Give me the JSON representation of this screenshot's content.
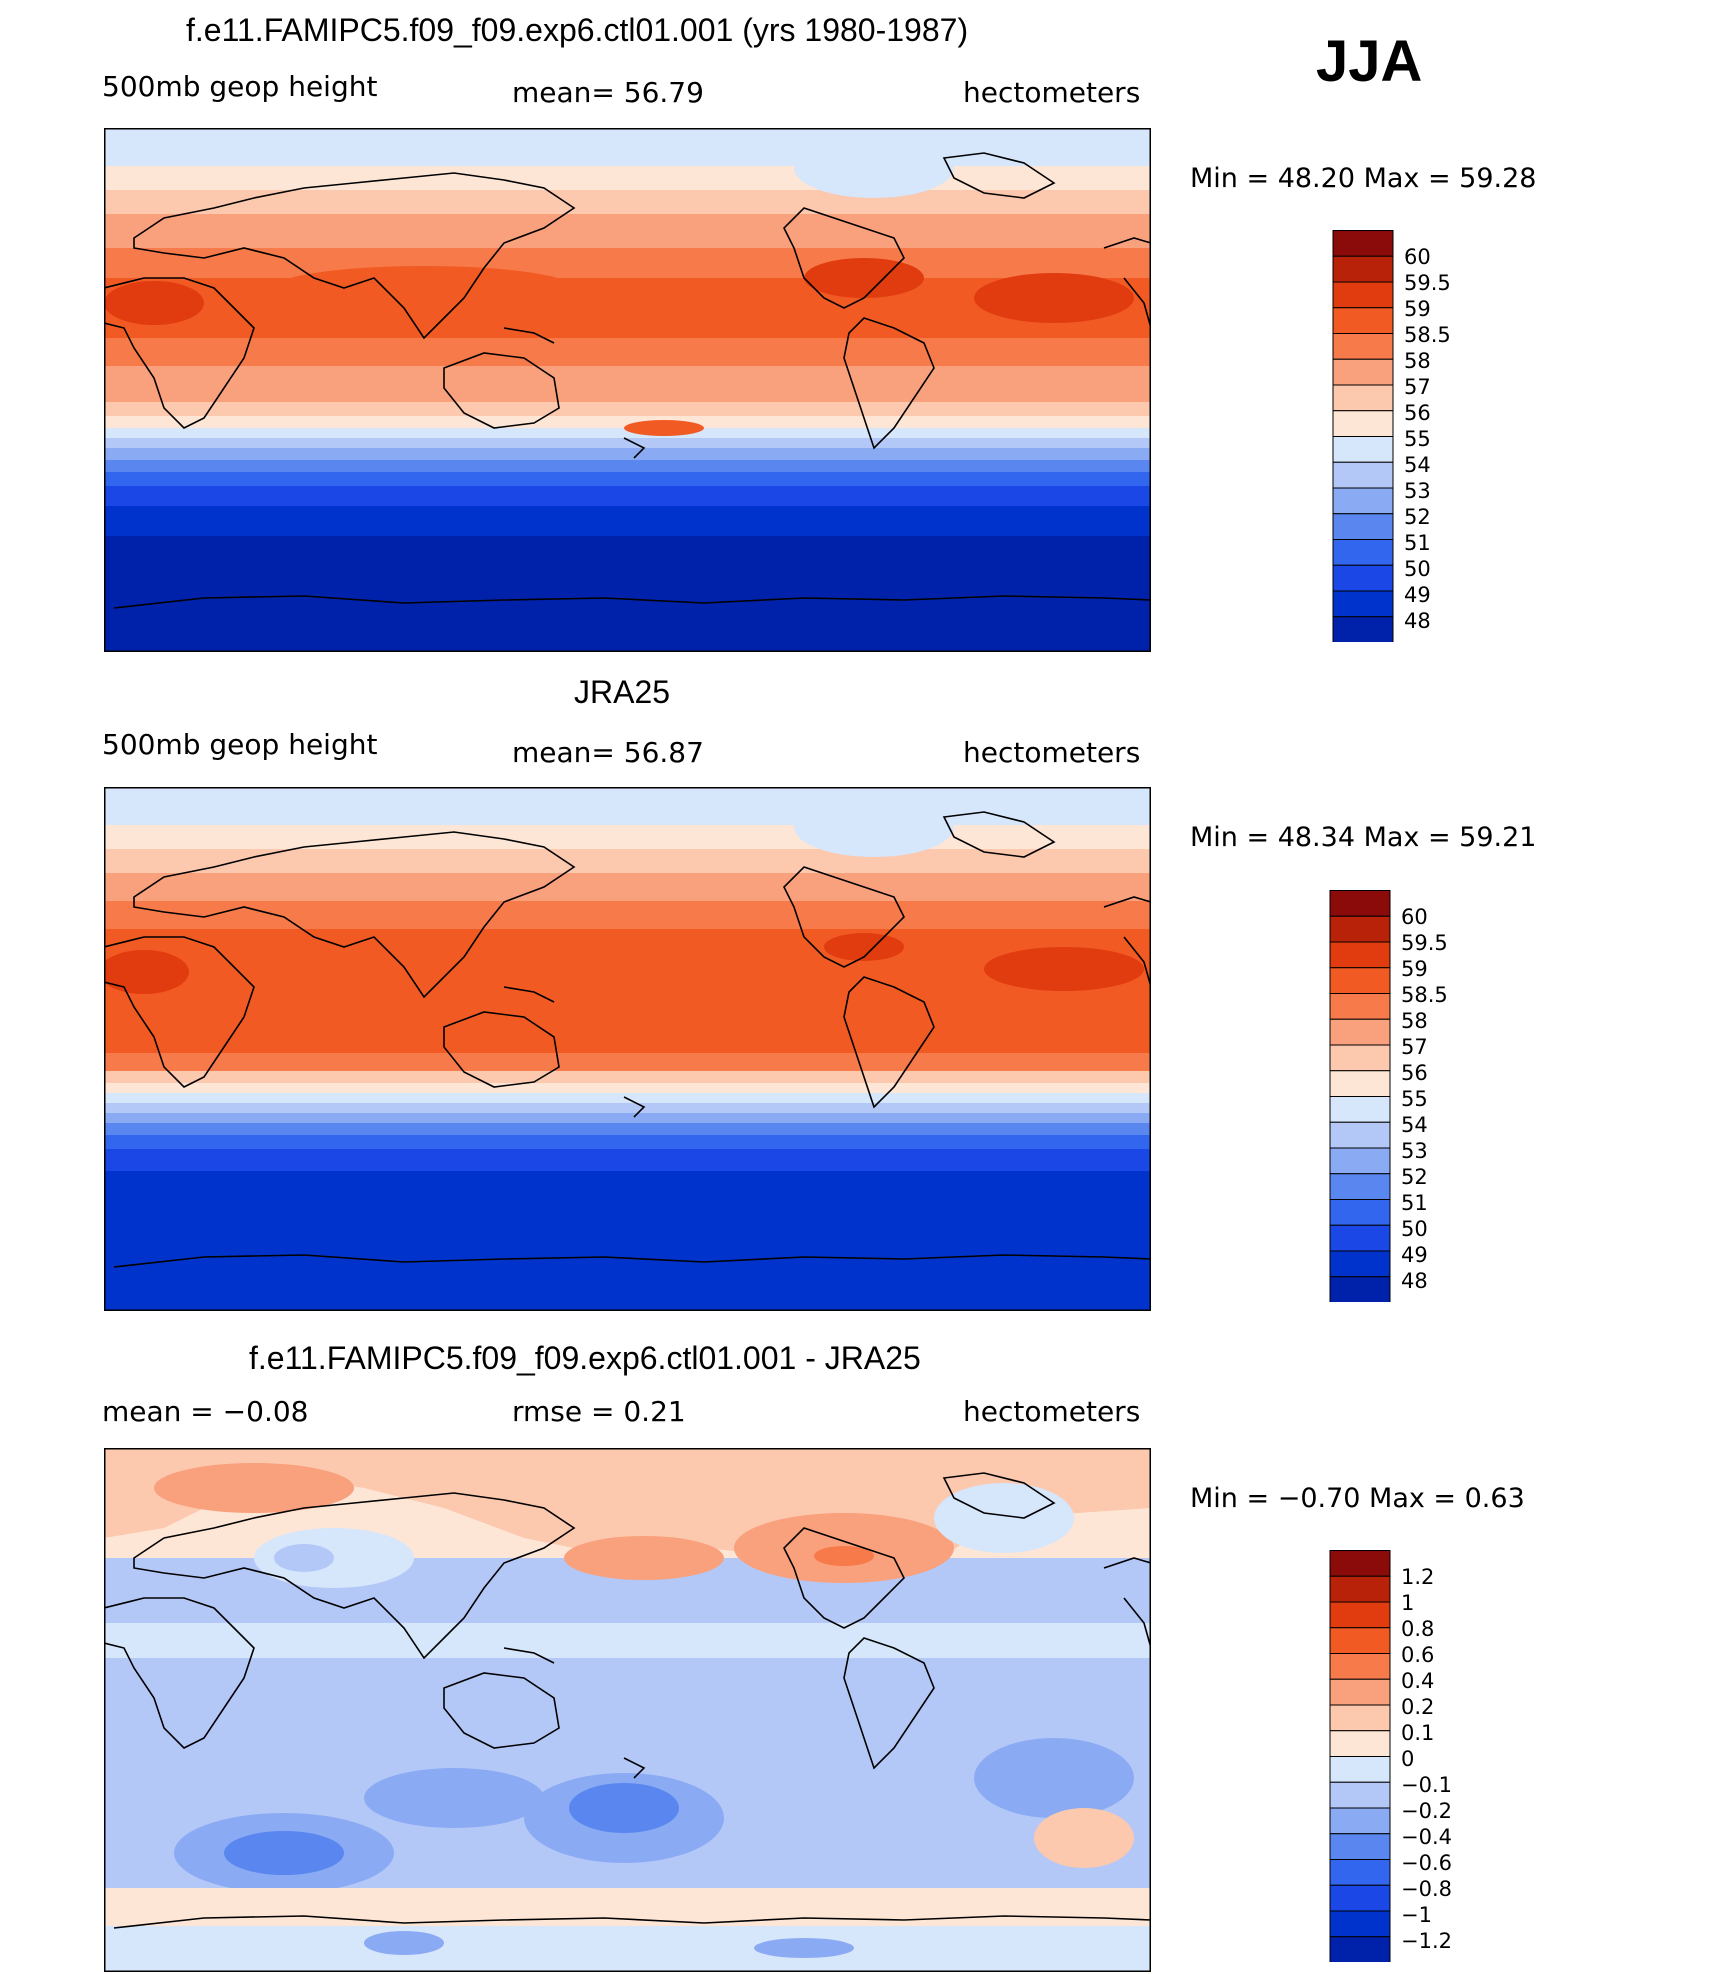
{
  "season": "JJA",
  "palette": {
    "abs": [
      "#00008b",
      "#0022aa",
      "#0033cc",
      "#1a47e6",
      "#3366ee",
      "#5a86f0",
      "#8aaaf3",
      "#b4c8f8",
      "#d6e6fb",
      "#fde6d6",
      "#fcc8ae",
      "#f9a07c",
      "#f77a4a",
      "#f25a24",
      "#e03c10",
      "#b82208",
      "#8b0a0a"
    ],
    "diff": [
      "#00008b",
      "#0022aa",
      "#0033cc",
      "#1a47e6",
      "#3366ee",
      "#5a86f0",
      "#8aaaf3",
      "#b4c8f8",
      "#d6e6fb",
      "#fde6d6",
      "#fcc8ae",
      "#f9a07c",
      "#f77a4a",
      "#f25a24",
      "#e03c10",
      "#b82208",
      "#8b0a0a"
    ]
  },
  "panels": [
    {
      "title": "f.e11.FAMIPC5.f09_f09.exp6.ctl01.001 (yrs 1980-1987)",
      "left_label": "500mb  geop  height",
      "mid_label": "mean=   56.79",
      "units": "hectometers",
      "minmax": "Min  =    48.20  Max  =    59.28",
      "chart_data": {
        "type": "heatmap",
        "variable": "500mb geop height",
        "units": "hectometers",
        "mean": 56.79,
        "min": 48.2,
        "max": 59.28,
        "levels": [
          48,
          49,
          50,
          51,
          52,
          53,
          54,
          55,
          56,
          57,
          58,
          58.5,
          59,
          59.5,
          60
        ]
      },
      "colorbar_labels": [
        "60",
        "59.5",
        "59",
        "58.5",
        "58",
        "57",
        "56",
        "55",
        "54",
        "53",
        "52",
        "51",
        "50",
        "49",
        "48"
      ]
    },
    {
      "title": "JRA25",
      "left_label": "500mb  geop  height",
      "mid_label": "mean=   56.87",
      "units": "hectometers",
      "minmax": "Min  =    48.34  Max  =    59.21",
      "chart_data": {
        "type": "heatmap",
        "variable": "500mb geop height",
        "units": "hectometers",
        "mean": 56.87,
        "min": 48.34,
        "max": 59.21,
        "levels": [
          48,
          49,
          50,
          51,
          52,
          53,
          54,
          55,
          56,
          57,
          58,
          58.5,
          59,
          59.5,
          60
        ]
      },
      "colorbar_labels": [
        "60",
        "59.5",
        "59",
        "58.5",
        "58",
        "57",
        "56",
        "55",
        "54",
        "53",
        "52",
        "51",
        "50",
        "49",
        "48"
      ]
    },
    {
      "title": "f.e11.FAMIPC5.f09_f09.exp6.ctl01.001 - JRA25",
      "left_label": "mean  =    −0.08",
      "mid_label": "rmse  =     0.21",
      "units": "hectometers",
      "minmax": "Min  =   −0.70  Max  =      0.63",
      "chart_data": {
        "type": "heatmap",
        "variable": "500mb geop height difference",
        "units": "hectometers",
        "mean": -0.08,
        "rmse": 0.21,
        "min": -0.7,
        "max": 0.63,
        "levels": [
          -1.2,
          -1,
          -0.8,
          -0.6,
          -0.4,
          -0.2,
          -0.1,
          0,
          0.1,
          0.2,
          0.4,
          0.6,
          0.8,
          1,
          1.2
        ]
      },
      "colorbar_labels": [
        "1.2",
        "1",
        "0.8",
        "0.6",
        "0.4",
        "0.2",
        "0.1",
        "0",
        "−0.1",
        "−0.2",
        "−0.4",
        "−0.6",
        "−0.8",
        "−1",
        "−1.2"
      ]
    }
  ]
}
